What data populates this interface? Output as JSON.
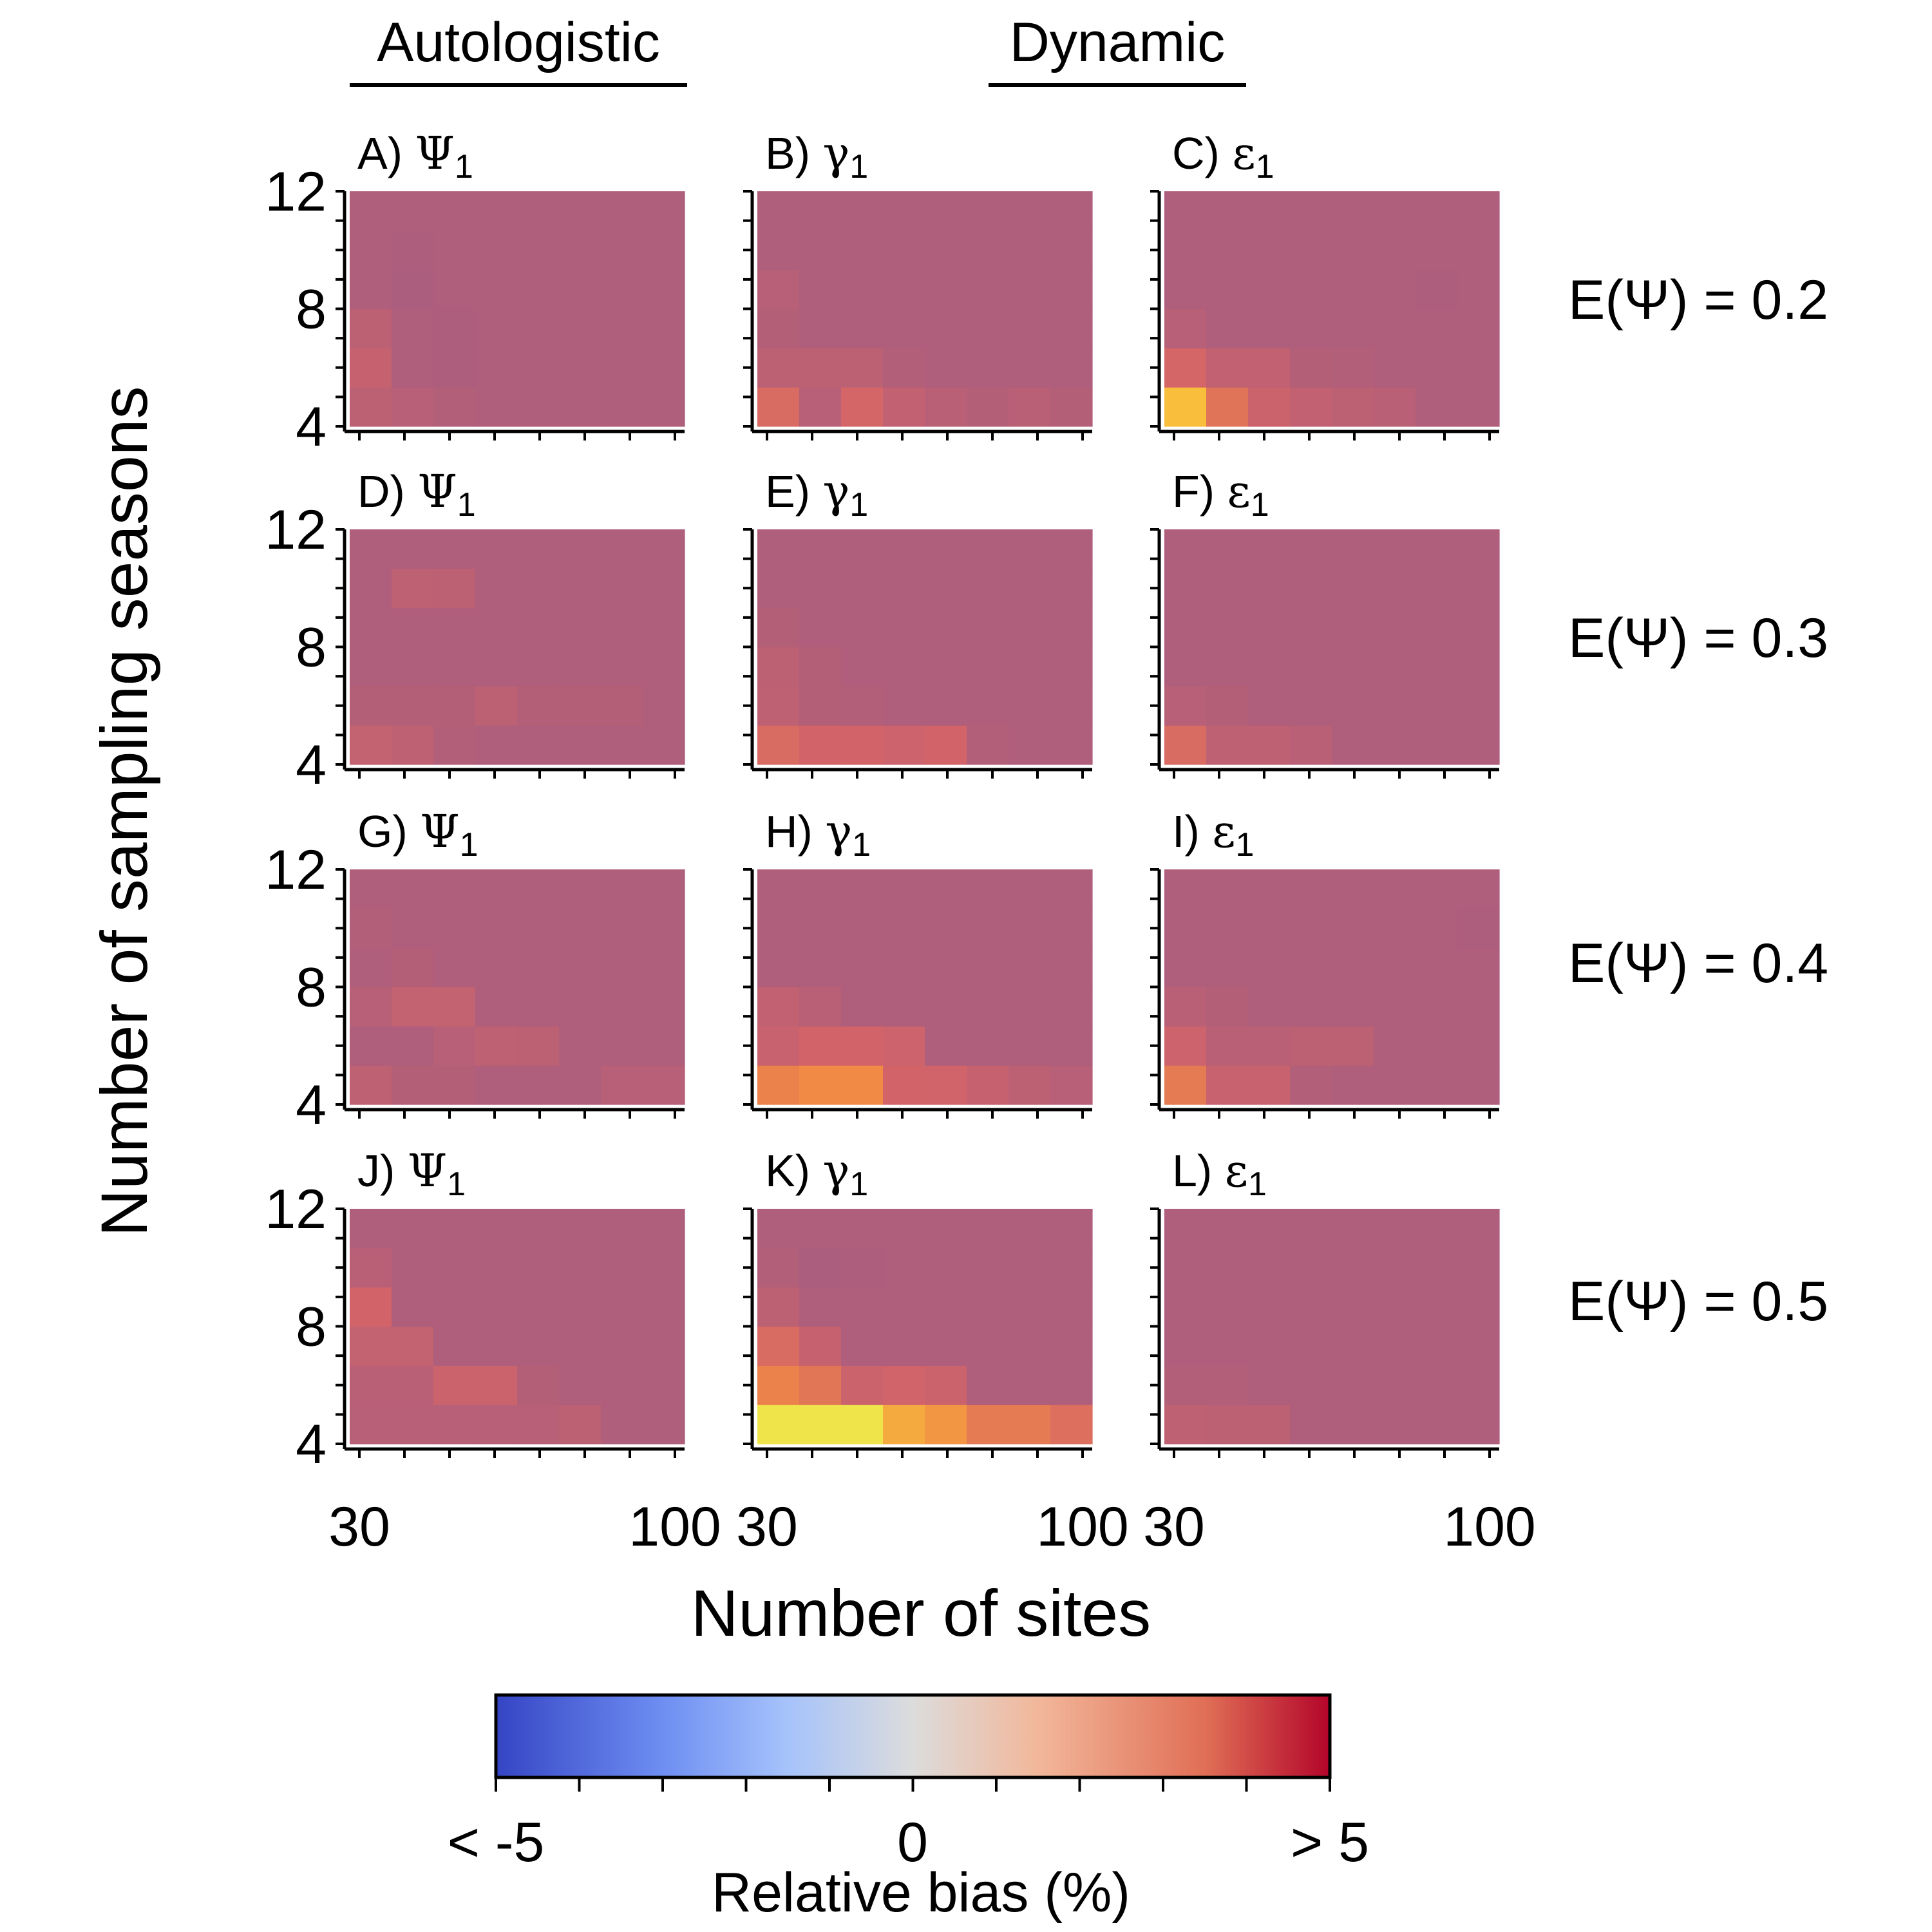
{
  "column_headers": [
    "Autologistic",
    "Dynamic"
  ],
  "row_labels": [
    "E(Ψ) = 0.2",
    "E(Ψ) = 0.3",
    "E(Ψ) = 0.4",
    "E(Ψ) = 0.5"
  ],
  "x_axis_title": "Number of sites",
  "y_axis_title": "Number of sampling seasons",
  "colorbar": {
    "title": "Relative bias (%)",
    "tick_labels": [
      "< -5",
      "0",
      "> 5"
    ],
    "range": [
      -5,
      5
    ],
    "colors": [
      "#3545c4",
      "#6e8ef2",
      "#a6c3fb",
      "#dcdcdc",
      "#f2b79a",
      "#e06f56",
      "#b3052a"
    ]
  },
  "chart_data": [
    {
      "type": "heatmap",
      "panel": "A)",
      "symbol": "Ψ",
      "subscript": "1",
      "xlabel": "Number of sites",
      "ylabel": "Number of sampling seasons",
      "x_ticks": [
        "30",
        "100"
      ],
      "y_ticks": [
        "12",
        "8",
        "4"
      ],
      "x_range": [
        30,
        100
      ],
      "y_range": [
        4,
        12
      ],
      "values": [
        [
          0.6,
          0.4,
          0.2,
          0.1,
          0.1,
          0.1,
          0.1,
          0.1
        ],
        [
          1.0,
          0.1,
          0.0,
          0.1,
          0.1,
          0.1,
          0.1,
          0.1
        ],
        [
          0.6,
          0.1,
          0.0,
          0.1,
          0.1,
          0.1,
          0.1,
          0.1
        ],
        [
          0.1,
          -0.2,
          0.1,
          0.1,
          0.1,
          0.1,
          0.1,
          0.1
        ],
        [
          0.1,
          0.0,
          0.1,
          0.1,
          0.1,
          0.1,
          0.1,
          0.1
        ],
        [
          0.1,
          0.1,
          0.1,
          0.1,
          0.1,
          0.1,
          0.1,
          0.1
        ]
      ]
    },
    {
      "type": "heatmap",
      "panel": "B)",
      "symbol": "γ",
      "subscript": "1",
      "xlabel": "Number of sites",
      "ylabel": "Number of sampling seasons",
      "x_ticks": [
        "30",
        "100"
      ],
      "y_ticks": [
        "12",
        "8",
        "4"
      ],
      "x_range": [
        30,
        100
      ],
      "y_range": [
        4,
        12
      ],
      "values": [
        [
          1.8,
          0.4,
          1.6,
          0.8,
          0.5,
          0.3,
          0.5,
          0.3
        ],
        [
          0.6,
          0.6,
          0.6,
          0.2,
          0.1,
          0.1,
          0.1,
          0.1
        ],
        [
          0.3,
          0.1,
          0.1,
          0.1,
          0.1,
          0.1,
          0.1,
          0.1
        ],
        [
          0.4,
          0.1,
          0.1,
          0.1,
          0.1,
          0.1,
          0.1,
          0.1
        ],
        [
          0.1,
          0.1,
          0.1,
          0.1,
          0.1,
          0.1,
          0.1,
          0.1
        ],
        [
          0.1,
          0.1,
          0.1,
          0.1,
          0.1,
          0.1,
          0.1,
          0.1
        ]
      ]
    },
    {
      "type": "heatmap",
      "panel": "C)",
      "symbol": "ε",
      "subscript": "1",
      "xlabel": "Number of sites",
      "ylabel": "Number of sampling seasons",
      "x_ticks": [
        "30",
        "100"
      ],
      "y_ticks": [
        "12",
        "8",
        "4"
      ],
      "x_range": [
        30,
        100
      ],
      "y_range": [
        4,
        12
      ],
      "values": [
        [
          4.4,
          2.2,
          1.2,
          0.8,
          0.6,
          0.5,
          0.1,
          0.1
        ],
        [
          1.6,
          0.8,
          0.8,
          0.3,
          0.2,
          0.1,
          0.1,
          0.1
        ],
        [
          0.4,
          0.1,
          0.1,
          0.1,
          0.1,
          0.1,
          0.1,
          0.1
        ],
        [
          0.1,
          0.1,
          0.1,
          0.1,
          0.1,
          0.1,
          0.0,
          0.1
        ],
        [
          0.1,
          0.1,
          0.1,
          0.1,
          0.1,
          0.1,
          0.1,
          0.1
        ],
        [
          0.1,
          0.1,
          0.1,
          0.1,
          0.1,
          0.1,
          0.1,
          0.1
        ]
      ]
    },
    {
      "type": "heatmap",
      "panel": "D)",
      "symbol": "Ψ",
      "subscript": "1",
      "xlabel": "Number of sites",
      "ylabel": "Number of sampling seasons",
      "x_ticks": [
        "30",
        "100"
      ],
      "y_ticks": [
        "12",
        "8",
        "4"
      ],
      "x_range": [
        30,
        100
      ],
      "y_range": [
        4,
        12
      ],
      "values": [
        [
          0.9,
          0.7,
          0.2,
          0.1,
          0.1,
          0.1,
          0.1,
          0.1
        ],
        [
          0.3,
          0.3,
          0.3,
          0.6,
          0.3,
          0.3,
          0.3,
          0.1
        ],
        [
          0.1,
          0.1,
          0.1,
          0.1,
          0.1,
          0.1,
          0.1,
          0.1
        ],
        [
          0.1,
          0.1,
          0.1,
          0.1,
          0.1,
          0.1,
          0.1,
          0.1
        ],
        [
          0.1,
          0.7,
          0.6,
          0.1,
          0.1,
          0.1,
          0.1,
          0.1
        ],
        [
          0.1,
          0.1,
          0.1,
          0.1,
          0.1,
          0.1,
          0.1,
          0.1
        ]
      ]
    },
    {
      "type": "heatmap",
      "panel": "E)",
      "symbol": "γ",
      "subscript": "1",
      "xlabel": "Number of sites",
      "ylabel": "Number of sampling seasons",
      "x_ticks": [
        "30",
        "100"
      ],
      "y_ticks": [
        "12",
        "8",
        "4"
      ],
      "x_range": [
        30,
        100
      ],
      "y_range": [
        4,
        12
      ],
      "values": [
        [
          1.8,
          1.5,
          1.5,
          1.3,
          1.5,
          0.2,
          0.1,
          0.1
        ],
        [
          0.7,
          0.3,
          0.2,
          0.1,
          0.1,
          0.1,
          0.1,
          0.1
        ],
        [
          0.6,
          0.3,
          0.1,
          0.1,
          0.1,
          0.1,
          0.1,
          0.1
        ],
        [
          0.3,
          0.1,
          0.1,
          0.1,
          0.1,
          0.1,
          0.1,
          0.1
        ],
        [
          0.1,
          0.1,
          0.1,
          0.1,
          0.1,
          0.1,
          0.1,
          0.1
        ],
        [
          0.1,
          0.1,
          0.1,
          0.1,
          0.1,
          0.1,
          0.1,
          0.1
        ]
      ]
    },
    {
      "type": "heatmap",
      "panel": "F)",
      "symbol": "ε",
      "subscript": "1",
      "xlabel": "Number of sites",
      "ylabel": "Number of sampling seasons",
      "x_ticks": [
        "30",
        "100"
      ],
      "y_ticks": [
        "12",
        "8",
        "4"
      ],
      "x_range": [
        30,
        100
      ],
      "y_range": [
        4,
        12
      ],
      "values": [
        [
          1.8,
          0.7,
          0.7,
          0.5,
          0.1,
          0.1,
          0.1,
          0.1
        ],
        [
          0.4,
          0.3,
          0.1,
          0.1,
          0.1,
          0.1,
          0.1,
          0.1
        ],
        [
          0.1,
          0.1,
          0.1,
          0.1,
          0.1,
          0.1,
          0.1,
          0.1
        ],
        [
          0.1,
          0.1,
          0.1,
          0.1,
          0.1,
          0.1,
          0.1,
          0.1
        ],
        [
          0.1,
          0.1,
          0.1,
          0.1,
          0.1,
          0.1,
          0.1,
          0.1
        ],
        [
          0.1,
          0.1,
          0.1,
          0.1,
          0.1,
          0.1,
          0.1,
          0.1
        ]
      ]
    },
    {
      "type": "heatmap",
      "panel": "G)",
      "symbol": "Ψ",
      "subscript": "1",
      "xlabel": "Number of sites",
      "ylabel": "Number of sampling seasons",
      "x_ticks": [
        "30",
        "100"
      ],
      "y_ticks": [
        "12",
        "8",
        "4"
      ],
      "x_range": [
        30,
        100
      ],
      "y_range": [
        4,
        12
      ],
      "values": [
        [
          0.7,
          0.3,
          0.3,
          0.1,
          0.1,
          0.1,
          0.4,
          0.4
        ],
        [
          0.1,
          0.1,
          0.4,
          0.7,
          0.6,
          0.1,
          0.1,
          0.1
        ],
        [
          0.4,
          0.9,
          0.9,
          0.1,
          0.1,
          0.1,
          0.1,
          0.1
        ],
        [
          0.1,
          0.3,
          0.1,
          0.1,
          0.1,
          0.1,
          0.1,
          0.1
        ],
        [
          0.2,
          0.1,
          0.1,
          0.1,
          0.1,
          0.1,
          0.1,
          0.1
        ],
        [
          0.1,
          0.1,
          0.1,
          0.1,
          0.1,
          0.1,
          0.1,
          0.1
        ]
      ]
    },
    {
      "type": "heatmap",
      "panel": "H)",
      "symbol": "γ",
      "subscript": "1",
      "xlabel": "Number of sites",
      "ylabel": "Number of sampling seasons",
      "x_ticks": [
        "30",
        "100"
      ],
      "y_ticks": [
        "12",
        "8",
        "4"
      ],
      "x_range": [
        30,
        100
      ],
      "y_range": [
        4,
        12
      ],
      "values": [
        [
          2.8,
          3.1,
          3.1,
          1.5,
          1.4,
          1.0,
          0.6,
          0.4
        ],
        [
          1.1,
          1.5,
          1.5,
          1.3,
          0.1,
          0.1,
          0.1,
          0.1
        ],
        [
          0.8,
          0.5,
          0.1,
          0.1,
          0.1,
          0.1,
          0.1,
          0.1
        ],
        [
          0.1,
          0.1,
          0.1,
          0.1,
          0.1,
          0.1,
          0.1,
          0.1
        ],
        [
          0.1,
          0.1,
          0.1,
          0.1,
          0.1,
          0.1,
          0.1,
          0.1
        ],
        [
          0.1,
          0.1,
          0.1,
          0.1,
          0.1,
          0.1,
          0.1,
          0.1
        ]
      ]
    },
    {
      "type": "heatmap",
      "panel": "I)",
      "symbol": "ε",
      "subscript": "1",
      "xlabel": "Number of sites",
      "ylabel": "Number of sampling seasons",
      "x_ticks": [
        "30",
        "100"
      ],
      "y_ticks": [
        "12",
        "8",
        "4"
      ],
      "x_range": [
        30,
        100
      ],
      "y_range": [
        4,
        12
      ],
      "values": [
        [
          2.5,
          1.1,
          1.1,
          0.2,
          0.1,
          0.1,
          0.1,
          0.1
        ],
        [
          1.3,
          0.5,
          0.5,
          0.6,
          0.6,
          0.1,
          0.1,
          0.1
        ],
        [
          0.5,
          0.3,
          0.1,
          0.1,
          0.1,
          0.1,
          0.1,
          0.1
        ],
        [
          0.1,
          0.1,
          0.1,
          0.1,
          0.1,
          0.1,
          0.1,
          0.1
        ],
        [
          0.1,
          0.1,
          0.1,
          0.1,
          0.1,
          0.1,
          0.1,
          0.0
        ],
        [
          0.1,
          0.1,
          0.1,
          0.1,
          0.1,
          0.1,
          0.1,
          0.1
        ]
      ]
    },
    {
      "type": "heatmap",
      "panel": "J)",
      "symbol": "Ψ",
      "subscript": "1",
      "xlabel": "Number of sites",
      "ylabel": "Number of sampling seasons",
      "x_ticks": [
        "30",
        "100"
      ],
      "y_ticks": [
        "12",
        "8",
        "4"
      ],
      "x_range": [
        30,
        100
      ],
      "y_range": [
        4,
        12
      ],
      "values": [
        [
          0.4,
          0.4,
          0.4,
          0.4,
          0.4,
          0.6,
          0.1,
          0.1
        ],
        [
          0.5,
          0.5,
          1.2,
          1.2,
          0.3,
          0.1,
          0.1,
          0.1
        ],
        [
          0.9,
          0.9,
          0.1,
          0.1,
          0.1,
          0.1,
          0.1,
          0.1
        ],
        [
          1.5,
          0.1,
          0.1,
          0.1,
          0.1,
          0.1,
          0.1,
          0.1
        ],
        [
          0.5,
          0.1,
          0.1,
          0.1,
          0.1,
          0.1,
          0.1,
          0.1
        ],
        [
          0.1,
          0.1,
          0.1,
          0.1,
          0.1,
          0.1,
          0.1,
          0.1
        ]
      ]
    },
    {
      "type": "heatmap",
      "panel": "K)",
      "symbol": "γ",
      "subscript": "1",
      "xlabel": "Number of sites",
      "ylabel": "Number of sampling seasons",
      "x_ticks": [
        "30",
        "100"
      ],
      "y_ticks": [
        "12",
        "8",
        "4"
      ],
      "x_range": [
        30,
        100
      ],
      "y_range": [
        4,
        12
      ],
      "values": [
        [
          5.0,
          5.0,
          5.0,
          3.9,
          3.4,
          2.5,
          2.5,
          2.0
        ],
        [
          2.8,
          2.3,
          1.2,
          1.4,
          1.2,
          0.1,
          0.1,
          0.1
        ],
        [
          1.8,
          1.0,
          0.1,
          0.1,
          0.1,
          0.1,
          0.1,
          0.1
        ],
        [
          0.6,
          0.1,
          0.1,
          0.1,
          0.1,
          0.1,
          0.1,
          0.1
        ],
        [
          0.2,
          -0.2,
          0.0,
          0.1,
          0.1,
          0.1,
          0.1,
          0.1
        ],
        [
          0.1,
          0.1,
          0.1,
          0.1,
          0.1,
          0.1,
          0.1,
          0.1
        ]
      ]
    },
    {
      "type": "heatmap",
      "panel": "L)",
      "symbol": "ε",
      "subscript": "1",
      "xlabel": "Number of sites",
      "ylabel": "Number of sampling seasons",
      "x_ticks": [
        "30",
        "100"
      ],
      "y_ticks": [
        "12",
        "8",
        "4"
      ],
      "x_range": [
        30,
        100
      ],
      "y_range": [
        4,
        12
      ],
      "values": [
        [
          0.7,
          0.6,
          0.6,
          0.1,
          0.1,
          0.1,
          0.1,
          0.1
        ],
        [
          0.2,
          0.2,
          0.1,
          0.1,
          0.1,
          0.1,
          0.1,
          0.1
        ],
        [
          0.1,
          0.1,
          0.1,
          0.1,
          0.1,
          0.1,
          0.1,
          0.1
        ],
        [
          0.1,
          0.1,
          0.1,
          0.1,
          0.1,
          0.1,
          0.1,
          0.1
        ],
        [
          0.1,
          0.1,
          0.1,
          0.1,
          0.1,
          0.1,
          0.1,
          0.1
        ],
        [
          0.1,
          0.1,
          0.1,
          0.1,
          0.1,
          0.1,
          0.1,
          0.1
        ]
      ]
    }
  ]
}
